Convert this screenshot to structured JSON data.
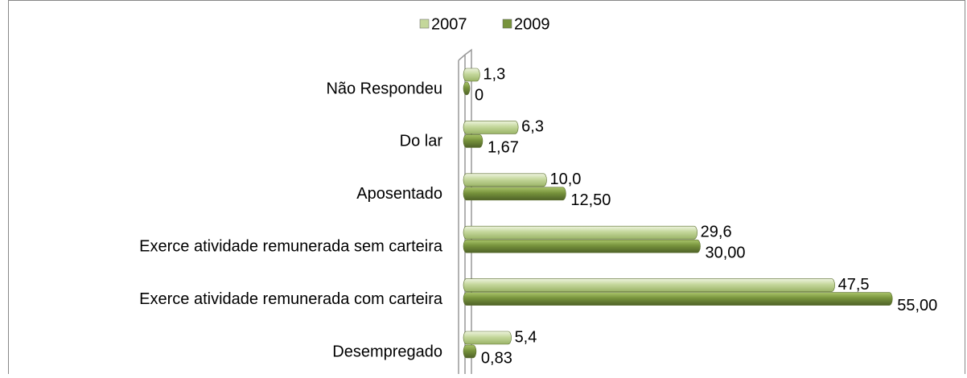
{
  "chart_data": {
    "type": "bar",
    "orientation": "horizontal",
    "categories": [
      "Não Respondeu",
      "Do lar",
      "Aposentado",
      "Exerce atividade remunerada sem carteira",
      "Exerce atividade remunerada com carteira",
      "Desempregado"
    ],
    "series": [
      {
        "name": "2007",
        "color": "#c4d79b",
        "values": [
          1.3,
          6.3,
          10.0,
          29.6,
          47.5,
          5.4
        ],
        "value_labels": [
          "1,3",
          "6,3",
          "10,0",
          "29,6",
          "47,5",
          "5,4"
        ]
      },
      {
        "name": "2009",
        "color": "#77933c",
        "values": [
          0,
          1.67,
          12.5,
          30,
          55,
          0.83
        ],
        "value_labels": [
          "0",
          "1,67",
          "12,50",
          "30,00",
          "55,00",
          "0,83"
        ]
      }
    ],
    "xlim": [
      0,
      60
    ],
    "legend": "top"
  }
}
